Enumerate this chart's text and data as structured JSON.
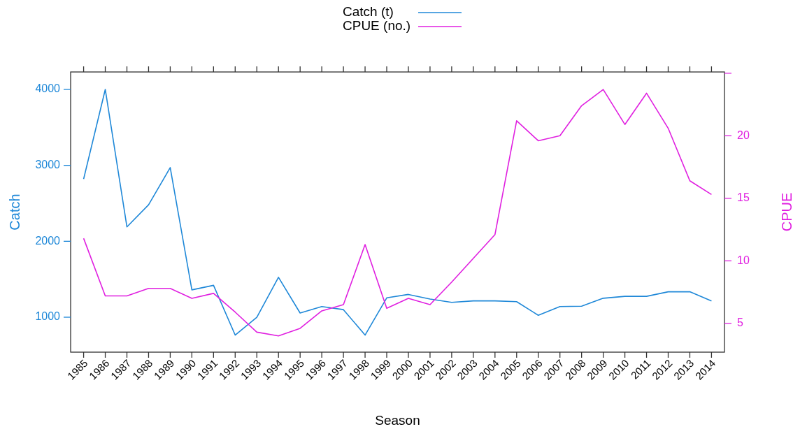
{
  "chart_data": {
    "type": "line",
    "xlabel": "Season",
    "ylabel": "Catch",
    "y2label": "CPUE",
    "x": [
      1985,
      1986,
      1987,
      1988,
      1989,
      1990,
      1991,
      1992,
      1993,
      1994,
      1995,
      1996,
      1997,
      1998,
      1999,
      2000,
      2001,
      2002,
      2003,
      2004,
      2005,
      2006,
      2007,
      2008,
      2009,
      2010,
      2011,
      2012,
      2013,
      2014
    ],
    "series": [
      {
        "name": "Catch (t)",
        "color": "#1f88d8",
        "values": [
          2820,
          4000,
          2190,
          2480,
          2970,
          1360,
          1420,
          765,
          1000,
          1525,
          1055,
          1140,
          1100,
          765,
          1255,
          1300,
          1240,
          1195,
          1215,
          1215,
          1205,
          1025,
          1140,
          1145,
          1250,
          1275,
          1275,
          1335,
          1335,
          1215
        ]
      },
      {
        "name": "CPUE (no.)",
        "color": "#e020e0",
        "axis": "y2",
        "values": [
          11.8,
          7.2,
          7.2,
          7.8,
          7.8,
          7.0,
          7.4,
          5.9,
          4.3,
          4.0,
          4.6,
          6.0,
          6.5,
          11.3,
          6.2,
          7.0,
          6.5,
          8.3,
          10.2,
          12.1,
          21.2,
          19.6,
          20.0,
          22.4,
          23.7,
          20.9,
          23.4,
          20.6,
          16.4,
          15.3
        ]
      }
    ],
    "xlim": [
      1984.4,
      2014.6
    ],
    "xticks": [
      1985,
      1986,
      1987,
      1988,
      1989,
      1990,
      1991,
      1992,
      1993,
      1994,
      1995,
      1996,
      1997,
      1998,
      1999,
      2000,
      2001,
      2002,
      2003,
      2004,
      2005,
      2006,
      2007,
      2008,
      2009,
      2010,
      2011,
      2012,
      2013,
      2014
    ],
    "ylim": [
      540,
      4230
    ],
    "yticks": [
      1000,
      2000,
      3000,
      4000
    ],
    "y2lim": [
      2.7,
      25.1
    ],
    "y2ticks": [
      5,
      10,
      15,
      20,
      {
        "value": 25,
        "label": null
      }
    ],
    "legend": "top",
    "grid": false,
    "marker": "none",
    "line_style": "solid"
  }
}
